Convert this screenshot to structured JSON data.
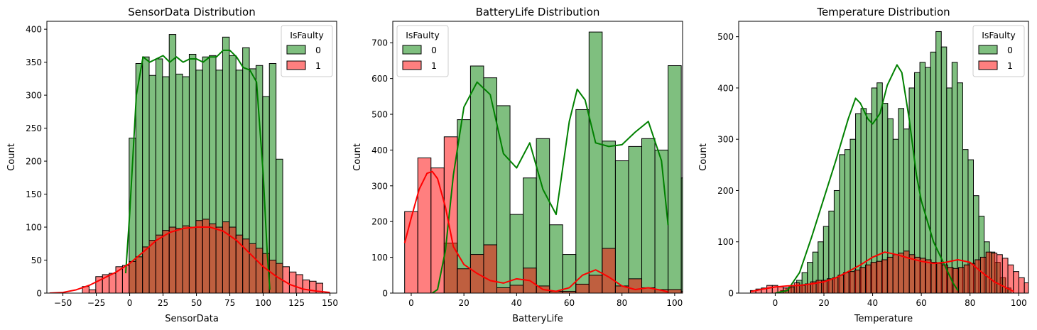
{
  "chart_data": [
    {
      "type": "histogram",
      "title": "SensorData Distribution",
      "xlabel": "SensorData",
      "ylabel": "Count",
      "xlim": [
        -62,
        155
      ],
      "ylim": [
        0,
        412
      ],
      "xticks": [
        -50,
        -25,
        0,
        25,
        50,
        75,
        100,
        125,
        150
      ],
      "yticks": [
        0,
        50,
        100,
        150,
        200,
        250,
        300,
        350,
        400
      ],
      "legend": {
        "title": "IsFaulty",
        "labels": [
          "0",
          "1"
        ],
        "position": "top-right"
      },
      "series": [
        {
          "name": "0",
          "color": "#008000",
          "bin_start": -5.4,
          "bin_width": 5.0,
          "counts": [
            0,
            235,
            348,
            358,
            330,
            355,
            328,
            392,
            332,
            328,
            362,
            338,
            358,
            360,
            338,
            388,
            360,
            338,
            372,
            340,
            345,
            298,
            348,
            203
          ],
          "kde_x": [
            -3,
            0,
            5,
            10,
            15,
            20,
            25,
            30,
            35,
            40,
            45,
            50,
            55,
            60,
            65,
            70,
            75,
            80,
            85,
            90,
            95,
            100,
            103,
            105
          ],
          "kde_y": [
            30,
            120,
            300,
            358,
            350,
            355,
            360,
            350,
            358,
            350,
            355,
            355,
            350,
            358,
            358,
            368,
            368,
            358,
            342,
            338,
            320,
            180,
            60,
            5
          ]
        },
        {
          "name": "1",
          "color": "#ff0000",
          "bin_start": -35.4,
          "bin_width": 5.0,
          "counts": [
            10,
            5,
            25,
            28,
            30,
            40,
            42,
            48,
            55,
            70,
            80,
            88,
            95,
            100,
            98,
            102,
            100,
            110,
            112,
            105,
            100,
            108,
            100,
            88,
            82,
            75,
            68,
            60,
            50,
            45,
            40,
            32,
            28,
            20,
            18,
            15
          ],
          "kde_x": [
            -60,
            -50,
            -40,
            -30,
            -20,
            -10,
            0,
            10,
            20,
            30,
            40,
            50,
            60,
            70,
            80,
            90,
            100,
            110,
            120,
            130,
            140,
            150
          ],
          "kde_y": [
            0,
            1,
            5,
            12,
            22,
            32,
            45,
            62,
            80,
            92,
            98,
            100,
            100,
            94,
            80,
            60,
            40,
            25,
            13,
            6,
            3,
            1
          ]
        }
      ]
    },
    {
      "type": "histogram",
      "title": "BatteryLife Distribution",
      "xlabel": "BatteryLife",
      "ylabel": "Count",
      "xlim": [
        -7,
        103
      ],
      "ylim": [
        0,
        760
      ],
      "xticks": [
        0,
        20,
        40,
        60,
        80,
        100
      ],
      "yticks": [
        0,
        100,
        200,
        300,
        400,
        500,
        600,
        700
      ],
      "legend": {
        "title": "IsFaulty",
        "labels": [
          "0",
          "1"
        ],
        "position": "top-left"
      },
      "series": [
        {
          "name": "0",
          "color": "#008000",
          "bin_start": -2.5,
          "bin_width": 5.0,
          "counts": [
            0,
            0,
            0,
            140,
            485,
            635,
            602,
            524,
            220,
            322,
            432,
            191,
            108,
            513,
            730,
            425,
            370,
            410,
            432,
            400,
            636,
            322
          ],
          "kde_x": [
            8,
            10,
            13,
            16,
            20,
            25,
            30,
            35,
            40,
            45,
            50,
            55,
            60,
            63,
            66,
            70,
            75,
            80,
            85,
            90,
            95,
            97.5
          ],
          "kde_y": [
            0,
            10,
            120,
            330,
            520,
            590,
            555,
            390,
            350,
            420,
            290,
            220,
            480,
            570,
            540,
            420,
            410,
            415,
            450,
            480,
            370,
            190
          ]
        },
        {
          "name": "1",
          "color": "#ff0000",
          "bin_start": -2.5,
          "bin_width": 5.0,
          "counts": [
            228,
            378,
            350,
            437,
            68,
            108,
            135,
            15,
            22,
            70,
            20,
            5,
            5,
            25,
            50,
            125,
            20,
            40,
            15,
            10,
            10,
            5
          ],
          "kde_x": [
            -2.5,
            0,
            3,
            6,
            8,
            10,
            13,
            16,
            20,
            25,
            30,
            35,
            40,
            45,
            50,
            55,
            60,
            65,
            70,
            75,
            80,
            85,
            90,
            95,
            97.5
          ],
          "kde_y": [
            140,
            210,
            290,
            335,
            340,
            320,
            240,
            130,
            80,
            55,
            35,
            28,
            40,
            35,
            10,
            5,
            15,
            50,
            65,
            45,
            20,
            10,
            15,
            8,
            3
          ]
        }
      ]
    },
    {
      "type": "histogram",
      "title": "Temperature Distribution",
      "xlabel": "Temperature",
      "ylabel": "Count",
      "xlim": [
        -15,
        104
      ],
      "ylim": [
        0,
        530
      ],
      "xticks": [
        0,
        20,
        40,
        60,
        80,
        100
      ],
      "yticks": [
        0,
        100,
        200,
        300,
        400,
        500
      ],
      "legend": {
        "title": "IsFaulty",
        "labels": [
          "0",
          "1"
        ],
        "position": "top-right"
      },
      "series": [
        {
          "name": "0",
          "color": "#008000",
          "bin_start": 2.2,
          "bin_width": 2.2,
          "counts": [
            5,
            10,
            15,
            25,
            40,
            60,
            80,
            100,
            130,
            160,
            200,
            270,
            280,
            300,
            350,
            360,
            350,
            400,
            410,
            370,
            340,
            300,
            360,
            320,
            400,
            430,
            450,
            440,
            470,
            510,
            480,
            400,
            450,
            410,
            280,
            260,
            190,
            150,
            100,
            80,
            60,
            30,
            10
          ],
          "kde_x": [
            0,
            5,
            10,
            15,
            20,
            25,
            30,
            33,
            35,
            38,
            40,
            43,
            46,
            50,
            52,
            55,
            58,
            60,
            65,
            70,
            73,
            75
          ],
          "kde_y": [
            0,
            5,
            40,
            110,
            185,
            260,
            340,
            380,
            370,
            340,
            330,
            350,
            405,
            445,
            430,
            340,
            230,
            180,
            100,
            50,
            20,
            5
          ]
        },
        {
          "name": "1",
          "color": "#ff0000",
          "bin_start": -10.2,
          "bin_width": 2.25,
          "counts": [
            5,
            8,
            10,
            15,
            15,
            12,
            10,
            12,
            20,
            15,
            18,
            22,
            25,
            25,
            28,
            30,
            35,
            40,
            42,
            45,
            50,
            55,
            60,
            62,
            65,
            70,
            75,
            78,
            82,
            75,
            70,
            68,
            65,
            60,
            58,
            55,
            50,
            48,
            50,
            55,
            58,
            65,
            70,
            80,
            78,
            75,
            68,
            55,
            42,
            30,
            20,
            15,
            10,
            8,
            5
          ],
          "kde_x": [
            -10,
            -5,
            0,
            5,
            10,
            15,
            20,
            25,
            30,
            35,
            40,
            45,
            50,
            55,
            60,
            65,
            70,
            75,
            80,
            85,
            90,
            95,
            98
          ],
          "kde_y": [
            3,
            8,
            12,
            14,
            15,
            18,
            22,
            30,
            42,
            55,
            70,
            80,
            75,
            68,
            62,
            58,
            60,
            65,
            60,
            40,
            22,
            10,
            3
          ]
        }
      ]
    }
  ]
}
